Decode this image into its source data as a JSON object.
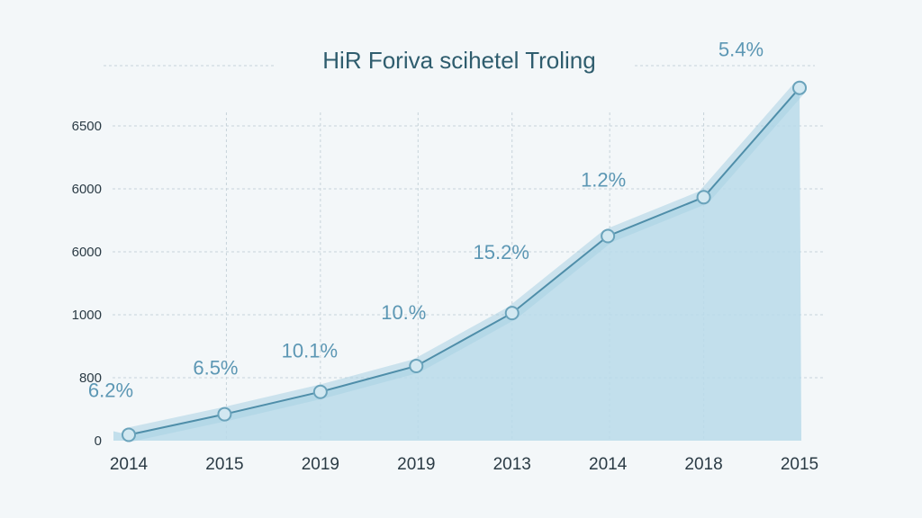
{
  "chart_data": {
    "type": "area",
    "title": "HiR Foriva scihetel Troling",
    "xlabel": "",
    "ylabel": "",
    "x_ticks": [
      "2014",
      "2015",
      "2019",
      "2019",
      "2013",
      "2014",
      "2018",
      "2015"
    ],
    "y_ticks": [
      "0",
      "800",
      "1000",
      "6000",
      "6000",
      "6500"
    ],
    "ylim": [
      0,
      6500
    ],
    "grid": true,
    "series": [
      {
        "values": [
          100,
          450,
          830,
          1270,
          2170,
          3480,
          4140,
          6000
        ],
        "data_labels": [
          "6.2%",
          "6.5%",
          "10.1%",
          "10.%",
          "15.2%",
          "1.2%",
          "",
          "5.4%"
        ]
      }
    ],
    "colors": {
      "area": "#b9dbea",
      "line": "#4f8ea9",
      "marker": "#6aa3bb",
      "label": "#5c97b4",
      "grid": "#c7d3da",
      "background": "#f3f7f9"
    }
  }
}
